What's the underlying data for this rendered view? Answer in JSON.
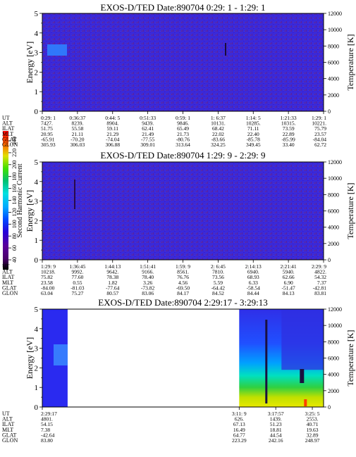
{
  "chart_data": {
    "type": "heatmap",
    "colorbar": {
      "label": "Second Harmonic Current",
      "ticks": [
        "40",
        "60",
        "80",
        "100",
        "120",
        "140",
        "160",
        "180",
        "200",
        "220",
        "240"
      ],
      "colors": [
        "#000000",
        "#4b006b",
        "#5a009a",
        "#2800d8",
        "#0048ff",
        "#00a8ff",
        "#00e0e0",
        "#00c070",
        "#40e000",
        "#e0e000",
        "#ff6000",
        "#ff0000"
      ]
    },
    "panels": [
      {
        "title": "EXOS-D/TED   Date:890704  0:29: 1 - 1:29: 1",
        "ylabel": "Energy [eV]",
        "y2label": "Temperature [K]",
        "ylim": [
          0,
          5
        ],
        "y2lim": [
          0,
          12000
        ],
        "yticks": [
          "0",
          "1",
          "2",
          "3",
          "4",
          "5"
        ],
        "y2ticks": [
          "0",
          "2000",
          "4000",
          "6000",
          "8000",
          "10000",
          "12000"
        ],
        "data_extent": [
          0,
          1
        ],
        "orbit_rows": [
          {
            "label": "UT",
            "values": [
              "0:29: 1",
              "0:36:37",
              "0:44: 5",
              "0:51:33",
              "0:59: 1",
              "1: 6:37",
              "1:14: 5",
              "1:21:33",
              "1:29: 1"
            ]
          },
          {
            "label": "ALT",
            "values": [
              "7427.",
              "8239.",
              "8904.",
              "9439.",
              "9846.",
              "10131.",
              "10285.",
              "10315.",
              "10221."
            ]
          },
          {
            "label": "ILAT",
            "values": [
              "51.75",
              "55.58",
              "59.11",
              "62.41",
              "65.49",
              "68.42",
              "71.11",
              "73.59",
              "75.79"
            ]
          },
          {
            "label": "MLT",
            "values": [
              "20.95",
              "21.11",
              "21.29",
              "21.49",
              "21.73",
              "22.02",
              "22.40",
              "22.89",
              "23.57"
            ]
          },
          {
            "label": "GLAT",
            "values": [
              "-65.91",
              "-70.20",
              "-74.04",
              "-77.55",
              "-80.76",
              "-83.66",
              "-85.78",
              "-85.99",
              "-84.04"
            ]
          },
          {
            "label": "GLON",
            "values": [
              "305.93",
              "306.03",
              "306.88",
              "309.01",
              "313.64",
              "324.25",
              "349.45",
              "33.40",
              "62.72"
            ]
          }
        ]
      },
      {
        "title": "EXOS-D/TED   Date:890704  1:29: 9 - 2:29: 9",
        "ylabel": "Energy [eV]",
        "y2label": "Temperature [K]",
        "ylim": [
          0,
          5
        ],
        "y2lim": [
          0,
          12000
        ],
        "yticks": [
          "0",
          "1",
          "2",
          "3",
          "4",
          "5"
        ],
        "y2ticks": [
          "0",
          "2000",
          "4000",
          "6000",
          "8000",
          "10000",
          "12000"
        ],
        "data_extent": [
          0,
          1
        ],
        "orbit_rows": [
          {
            "label": "UT",
            "values": [
              "1:29: 9",
              "1:36:45",
              "1:44:13",
              "1:51:41",
              "1:59: 9",
              "2: 6:45",
              "2:14:13",
              "2:21:41",
              "2:29: 9"
            ]
          },
          {
            "label": "ALT",
            "values": [
              "10218.",
              "9992.",
              "9642.",
              "9166.",
              "8561.",
              "7810.",
              "6940.",
              "5940.",
              "4822."
            ]
          },
          {
            "label": "ILAT",
            "values": [
              "75.82",
              "77.60",
              "78.38",
              "78.40",
              "76.76",
              "73.56",
              "68.93",
              "62.66",
              "54.32"
            ]
          },
          {
            "label": "MLT",
            "values": [
              "23.58",
              "0.55",
              "1.82",
              "3.26",
              "4.56",
              "5.59",
              "6.33",
              "6.90",
              "7.37"
            ]
          },
          {
            "label": "GLAT",
            "values": [
              "-84.00",
              "-81.03",
              "-77.64",
              "-73.82",
              "-69.50",
              "-64.42",
              "-58.54",
              "-51.47",
              "-42.81"
            ]
          },
          {
            "label": "GLON",
            "values": [
              "63.04",
              "75.27",
              "80.57",
              "83.06",
              "84.17",
              "84.52",
              "84.44",
              "84.13",
              "83.81"
            ]
          }
        ]
      },
      {
        "title": "EXOS-D/TED   Date:890704  2:29:17 - 3:29:13",
        "ylabel": "Energy [eV]",
        "y2label": "Temperature [K]",
        "ylim": [
          0,
          5
        ],
        "y2lim": [
          0,
          12000
        ],
        "yticks": [
          "0",
          "1",
          "2",
          "3",
          "4",
          "5"
        ],
        "y2ticks": [
          "0",
          "2000",
          "4000",
          "6000",
          "8000",
          "10000",
          "12000"
        ],
        "data_extent": [
          [
            0,
            0.09
          ],
          [
            0.7,
            1
          ]
        ],
        "orbit_rows": [
          {
            "label": "UT",
            "values": [
              "2:29:17",
              "3:11: 9",
              "3:17:57",
              "3:25: 5"
            ]
          },
          {
            "label": "ALT",
            "values": [
              "4801.",
              "626.",
              "1439.",
              "2553."
            ]
          },
          {
            "label": "ILAT",
            "values": [
              "54.15",
              "67.13",
              "51.23",
              "40.71"
            ]
          },
          {
            "label": "MLT",
            "values": [
              "7.38",
              "16.49",
              "18.81",
              "19.63"
            ]
          },
          {
            "label": "GLAT",
            "values": [
              "-42.64",
              "64.77",
              "44.54",
              "32.89"
            ]
          },
          {
            "label": "GLON",
            "values": [
              "83.80",
              "223.29",
              "242.16",
              "248.97"
            ]
          }
        ]
      }
    ]
  }
}
